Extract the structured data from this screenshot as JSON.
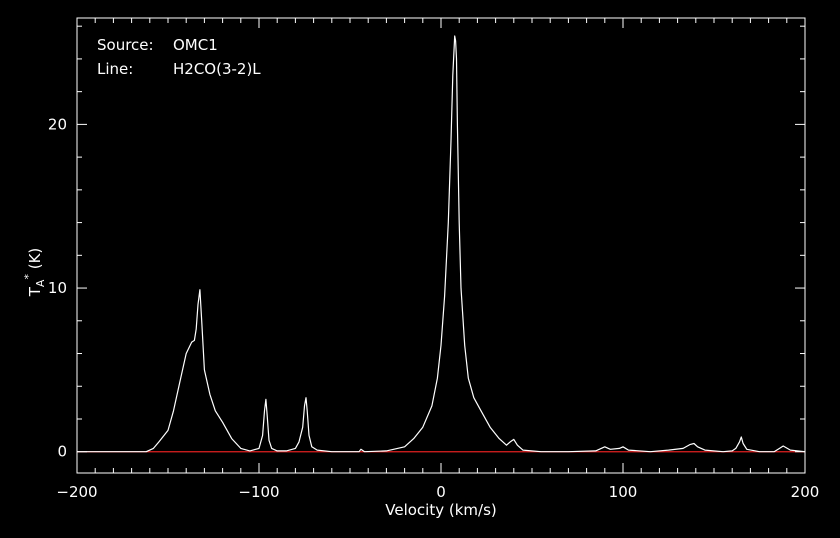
{
  "chart_data": {
    "type": "line",
    "title": "",
    "xlabel": "Velocity (km/s)",
    "ylabel_main": "T",
    "ylabel_sub": "A",
    "ylabel_sup": "*",
    "ylabel_unit": " (K)",
    "xlim": [
      -200,
      200
    ],
    "ylim": [
      -1.3,
      26.5
    ],
    "x_ticks": [
      -200,
      -100,
      0,
      100,
      200
    ],
    "x_tick_labels": [
      "−200",
      "−100",
      "0",
      "100",
      "200"
    ],
    "y_ticks": [
      0,
      10,
      20
    ],
    "y_tick_labels": [
      "0",
      "10",
      "20"
    ],
    "grid": false,
    "annotations": [
      {
        "key": "Source:",
        "value": "OMC1"
      },
      {
        "key": "Line:",
        "value": "H2CO(3-2)L"
      }
    ],
    "colors": {
      "background": "#000000",
      "axes": "#ffffff",
      "spectrum": "#ffffff",
      "baseline": "#e02020"
    },
    "baseline_y": 0,
    "series": [
      {
        "x": [
          -200,
          -175,
          -162,
          -158,
          -155,
          -150,
          -147,
          -143,
          -140,
          -137,
          -135.5,
          -134.5,
          -133.5,
          -132.5,
          -131.5,
          -130,
          -127,
          -124,
          -120,
          -115,
          -110,
          -105,
          -100,
          -98,
          -97,
          -96.2,
          -95.5,
          -94.5,
          -93,
          -90,
          -85,
          -80,
          -78,
          -76,
          -75,
          -74.2,
          -73.5,
          -72.5,
          -71,
          -68,
          -60,
          -45,
          -44,
          -42,
          -30,
          -20,
          -15,
          -10,
          -5,
          -2,
          0,
          2,
          4,
          5.5,
          6.5,
          7.5,
          8,
          8.5,
          9,
          10,
          11,
          13,
          15,
          18,
          22,
          27,
          32,
          36,
          38,
          40,
          42,
          45,
          55,
          70,
          85,
          88,
          90,
          93,
          98,
          100,
          103,
          115,
          125,
          133,
          137,
          139,
          141,
          145,
          155,
          160,
          162,
          164,
          165,
          166,
          168,
          175,
          183,
          186,
          188,
          192,
          200
        ],
        "y": [
          0,
          0,
          0,
          0.2,
          0.6,
          1.3,
          2.5,
          4.5,
          6.0,
          6.7,
          6.8,
          7.5,
          9.0,
          9.9,
          8.0,
          5.0,
          3.5,
          2.5,
          1.8,
          0.8,
          0.2,
          0.05,
          0.2,
          1.0,
          2.5,
          3.2,
          2.2,
          0.7,
          0.2,
          0.05,
          0.05,
          0.2,
          0.6,
          1.5,
          2.8,
          3.3,
          2.5,
          1.0,
          0.3,
          0.1,
          0,
          0,
          0.15,
          0,
          0.05,
          0.3,
          0.8,
          1.5,
          2.8,
          4.5,
          6.5,
          9.5,
          14,
          19,
          23,
          25.4,
          25.1,
          24,
          20,
          14,
          10,
          6.5,
          4.5,
          3.3,
          2.5,
          1.5,
          0.8,
          0.4,
          0.6,
          0.75,
          0.4,
          0.1,
          0,
          0,
          0.05,
          0.2,
          0.3,
          0.15,
          0.2,
          0.3,
          0.1,
          0,
          0.1,
          0.2,
          0.45,
          0.5,
          0.3,
          0.1,
          0,
          0.05,
          0.2,
          0.6,
          0.9,
          0.5,
          0.15,
          0,
          0,
          0.2,
          0.35,
          0.1,
          0
        ]
      }
    ]
  }
}
